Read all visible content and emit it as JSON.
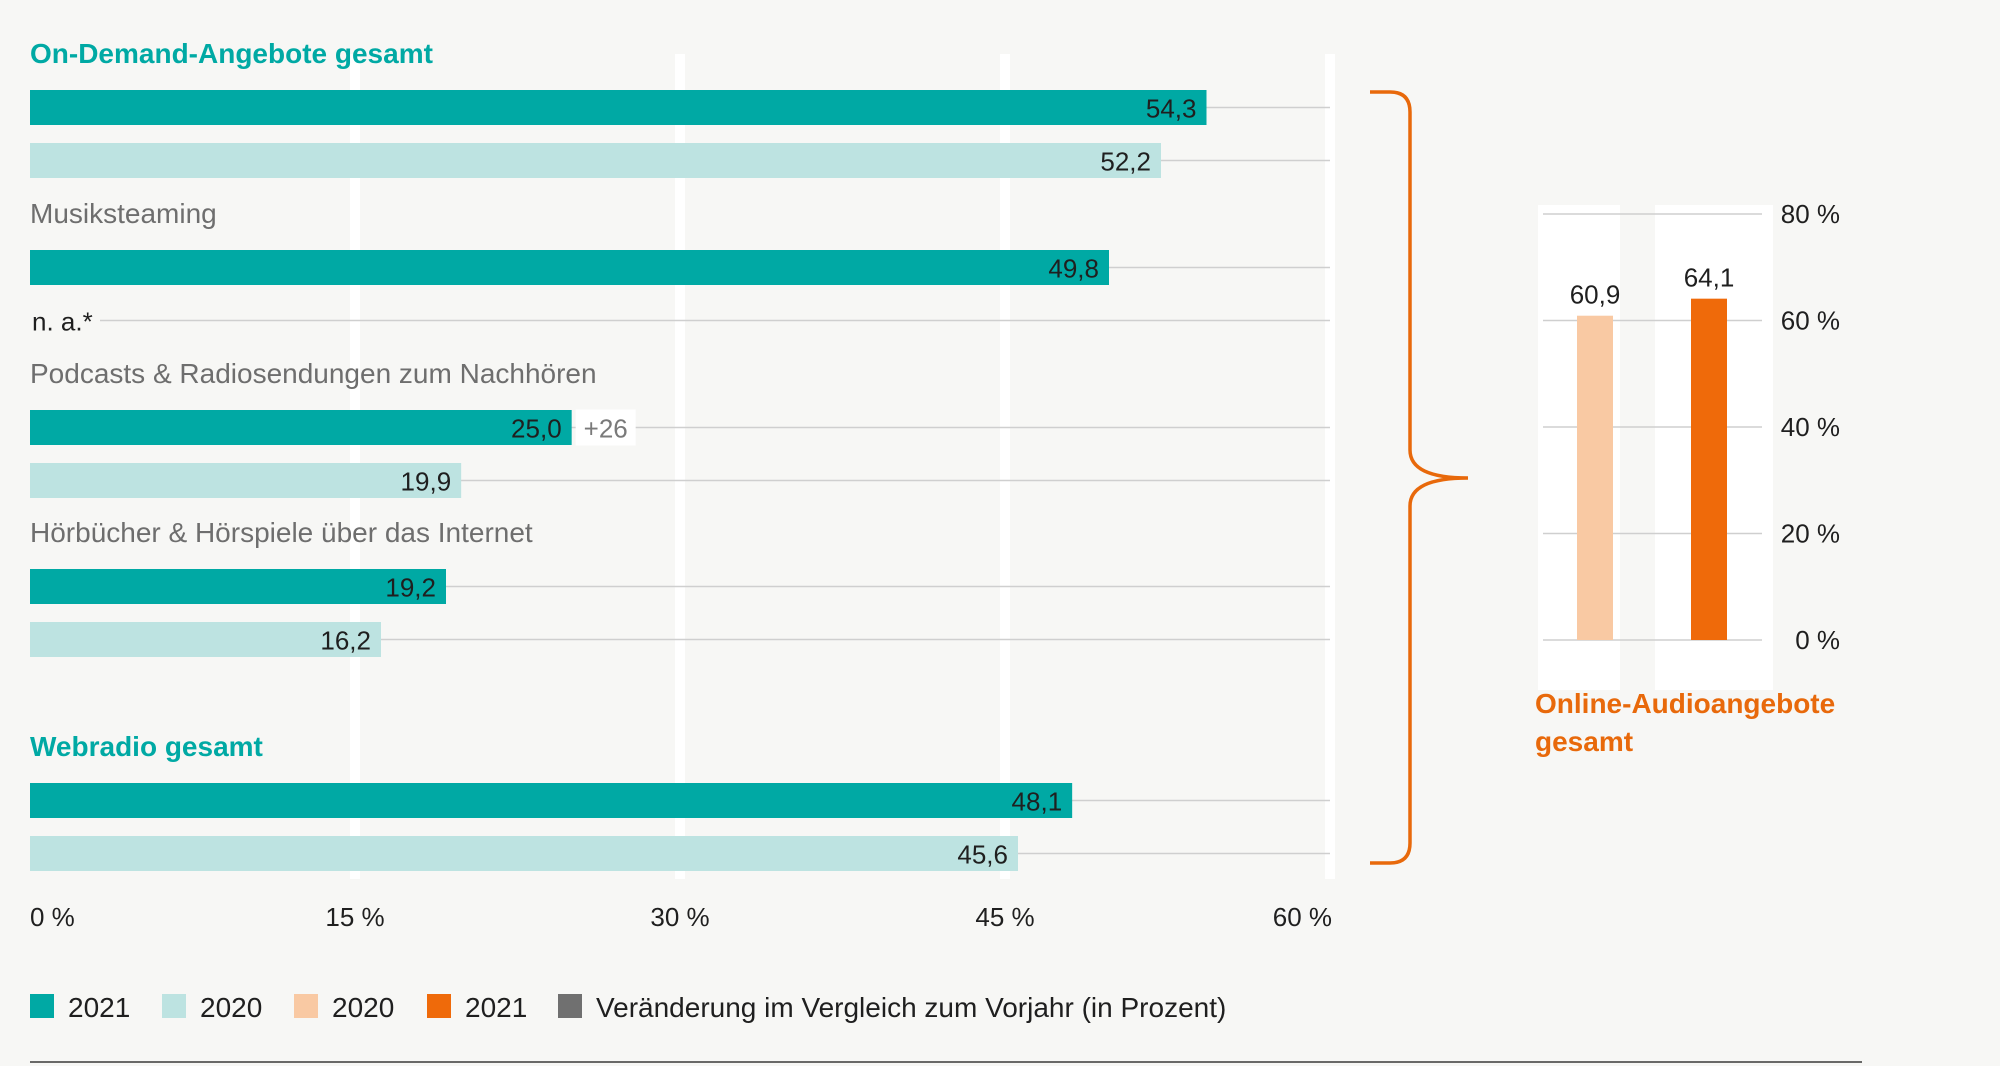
{
  "colors": {
    "teal": "#00a9a4",
    "teal_light": "#bde3e1",
    "orange_light": "#f9c9a3",
    "orange": "#ef6a0a",
    "gray": "#707070",
    "grid": "#cfcfcf",
    "brace": "#e8690b"
  },
  "chart_data": [
    {
      "type": "bar",
      "orientation": "horizontal",
      "xlim": [
        0,
        60
      ],
      "x_ticks": [
        "0 %",
        "15 %",
        "30 %",
        "45 %",
        "60 %"
      ],
      "groups": [
        {
          "label": "On-Demand-Angebote gesamt",
          "highlight": true,
          "bars": [
            {
              "series": "2021",
              "value": 54.3,
              "label": "54,3"
            },
            {
              "series": "2020",
              "value": 52.2,
              "label": "52,2"
            }
          ]
        },
        {
          "label": "Musiksteaming",
          "highlight": false,
          "bars": [
            {
              "series": "2021",
              "value": 49.8,
              "label": "49,8"
            },
            {
              "series": "2020",
              "value": null,
              "label": "n. a.*"
            }
          ]
        },
        {
          "label": "Podcasts & Radiosendungen zum Nachhören",
          "highlight": false,
          "bars": [
            {
              "series": "2021",
              "value": 25.0,
              "label": "25,0",
              "change": "+26"
            },
            {
              "series": "2020",
              "value": 19.9,
              "label": "19,9"
            }
          ]
        },
        {
          "label": "Hörbücher & Hörspiele über das Internet",
          "highlight": false,
          "bars": [
            {
              "series": "2021",
              "value": 19.2,
              "label": "19,2"
            },
            {
              "series": "2020",
              "value": 16.2,
              "label": "16,2"
            }
          ]
        },
        {
          "label": "Webradio gesamt",
          "highlight": true,
          "bars": [
            {
              "series": "2021",
              "value": 48.1,
              "label": "48,1"
            },
            {
              "series": "2020",
              "value": 45.6,
              "label": "45,6"
            }
          ]
        }
      ]
    },
    {
      "type": "bar",
      "orientation": "vertical",
      "title": "Online-Audioangebote gesamt",
      "title_lines": [
        "Online-Audioangebote",
        "gesamt"
      ],
      "ylim": [
        0,
        80
      ],
      "y_ticks": [
        "0 %",
        "20 %",
        "40 %",
        "60 %",
        "80 %"
      ],
      "bars": [
        {
          "series": "2020",
          "value": 60.9,
          "label": "60,9"
        },
        {
          "series": "2021",
          "value": 64.1,
          "label": "64,1"
        }
      ]
    }
  ],
  "legend": [
    {
      "label": "2021",
      "color": "#00a9a4"
    },
    {
      "label": "2020",
      "color": "#bde3e1"
    },
    {
      "label": "2020",
      "color": "#f9c9a3"
    },
    {
      "label": "2021",
      "color": "#ef6a0a"
    },
    {
      "label": "Veränderung im Vergleich zum Vorjahr (in Prozent)",
      "color": "#707070"
    }
  ]
}
